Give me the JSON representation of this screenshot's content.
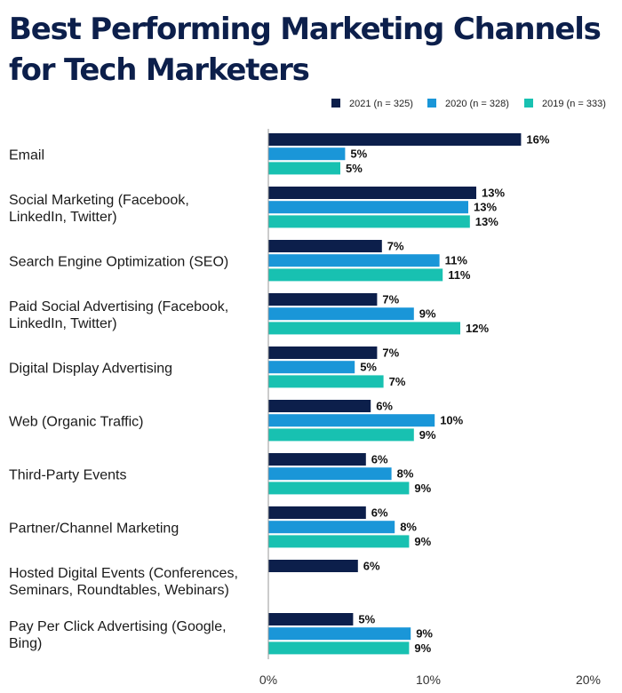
{
  "chart_data": {
    "type": "bar",
    "orientation": "horizontal",
    "title": "Best Performing Marketing Channels for Tech Marketers",
    "title_lines": [
      "Best Performing Marketing Channels",
      "for Tech Marketers"
    ],
    "categories": [
      [
        "Email"
      ],
      [
        "Social Marketing (Facebook,",
        "LinkedIn, Twitter)"
      ],
      [
        "Search Engine Optimization (SEO)"
      ],
      [
        "Paid Social Advertising (Facebook,",
        "LinkedIn, Twitter)"
      ],
      [
        "Digital Display Advertising"
      ],
      [
        "Web (Organic Traffic)"
      ],
      [
        "Third-Party Events"
      ],
      [
        "Partner/Channel Marketing"
      ],
      [
        "Hosted Digital Events (Conferences,",
        "Seminars, Roundtables, Webinars)"
      ],
      [
        "Pay Per Click Advertising (Google,",
        "Bing)"
      ]
    ],
    "series": [
      {
        "name": "2021 (n = 325)",
        "color": "#0c1f4b",
        "values": [
          15.8,
          13.0,
          7.1,
          6.8,
          6.8,
          6.4,
          6.1,
          6.1,
          5.6,
          5.3
        ],
        "labels": [
          "16%",
          "13%",
          "7%",
          "7%",
          "7%",
          "6%",
          "6%",
          "6%",
          "6%",
          "5%"
        ]
      },
      {
        "name": "2020 (n = 328)",
        "color": "#1a96d8",
        "values": [
          4.8,
          12.5,
          10.7,
          9.1,
          5.4,
          10.4,
          7.7,
          7.9,
          null,
          8.9
        ],
        "labels": [
          "5%",
          "13%",
          "11%",
          "9%",
          "5%",
          "10%",
          "8%",
          "8%",
          null,
          "9%"
        ]
      },
      {
        "name": "2019 (n = 333)",
        "color": "#18c1b1",
        "values": [
          4.5,
          12.6,
          10.9,
          12.0,
          7.2,
          9.1,
          8.8,
          8.8,
          null,
          8.8
        ],
        "labels": [
          "5%",
          "13%",
          "11%",
          "12%",
          "7%",
          "9%",
          "9%",
          "9%",
          null,
          "9%"
        ]
      }
    ],
    "xlim": [
      0,
      20
    ],
    "xticks": [
      0,
      10,
      20
    ],
    "xtick_labels": [
      "0%",
      "10%",
      "20%"
    ],
    "legend_position": "top-right",
    "grid": false
  }
}
